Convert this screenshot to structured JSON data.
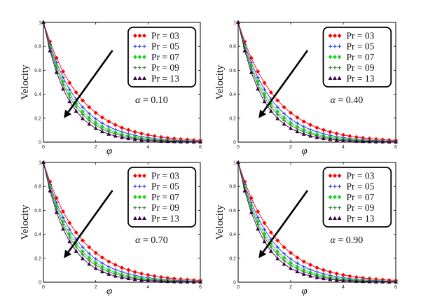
{
  "chart_data": [
    {
      "type": "line",
      "title": "",
      "xlabel": "φ",
      "ylabel": "Velocity",
      "xlim": [
        0,
        6
      ],
      "ylim": [
        0,
        1
      ],
      "xticks": [
        "0",
        "2",
        "4",
        "6"
      ],
      "yticks": [
        "0",
        "0.2",
        "0.4",
        "0.6",
        "0.8",
        "1"
      ],
      "annotation": {
        "symbol": "α",
        "text": " = 0.10"
      },
      "x": [
        0,
        0.25,
        0.5,
        0.75,
        1,
        1.25,
        1.5,
        1.75,
        2,
        2.25,
        2.5,
        2.75,
        3,
        3.25,
        3.5,
        3.75,
        4,
        4.25,
        4.5,
        4.75,
        5,
        5.25,
        5.5,
        5.75,
        6
      ],
      "series": [
        {
          "name": "Pr = 03",
          "color": "#ff0000",
          "marker": "diamond",
          "values": [
            1.0,
            0.839,
            0.703,
            0.59,
            0.495,
            0.415,
            0.348,
            0.292,
            0.245,
            0.206,
            0.172,
            0.145,
            0.121,
            0.102,
            0.085,
            0.072,
            0.06,
            0.05,
            0.042,
            0.035,
            0.03,
            0.025,
            0.021,
            0.017,
            0.015
          ]
        },
        {
          "name": "Pr = 05",
          "color": "#2a34f5",
          "marker": "plus",
          "values": [
            1.0,
            0.815,
            0.664,
            0.541,
            0.441,
            0.359,
            0.292,
            0.238,
            0.194,
            0.158,
            0.129,
            0.105,
            0.086,
            0.07,
            0.057,
            0.046,
            0.038,
            0.031,
            0.025,
            0.02,
            0.017,
            0.014,
            0.011,
            0.009,
            0.007
          ]
        },
        {
          "name": "Pr = 07",
          "color": "#1ed31e",
          "marker": "diamond",
          "values": [
            1.0,
            0.797,
            0.635,
            0.506,
            0.403,
            0.321,
            0.256,
            0.204,
            0.162,
            0.129,
            0.103,
            0.082,
            0.065,
            0.052,
            0.042,
            0.033,
            0.026,
            0.021,
            0.017,
            0.013,
            0.011,
            0.009,
            0.007,
            0.005,
            0.004
          ]
        },
        {
          "name": "Pr = 09",
          "color": "#2e7d32",
          "marker": "plus",
          "values": [
            1.0,
            0.783,
            0.613,
            0.48,
            0.375,
            0.294,
            0.23,
            0.18,
            0.141,
            0.11,
            0.086,
            0.068,
            0.053,
            0.041,
            0.032,
            0.025,
            0.02,
            0.016,
            0.012,
            0.01,
            0.007,
            0.006,
            0.005,
            0.004,
            0.003
          ]
        },
        {
          "name": "Pr = 13",
          "color": "#3a0045",
          "marker": "triangle",
          "values": [
            1.0,
            0.763,
            0.582,
            0.444,
            0.339,
            0.259,
            0.197,
            0.151,
            0.115,
            0.088,
            0.067,
            0.051,
            0.039,
            0.03,
            0.023,
            0.017,
            0.013,
            0.01,
            0.008,
            0.006,
            0.005,
            0.003,
            0.003,
            0.002,
            0.002
          ]
        }
      ]
    },
    {
      "type": "line",
      "title": "",
      "xlabel": "φ",
      "ylabel": "Velocity",
      "xlim": [
        0,
        6
      ],
      "ylim": [
        0,
        1
      ],
      "xticks": [
        "0",
        "2",
        "4",
        "6"
      ],
      "yticks": [
        "0",
        "0.2",
        "0.4",
        "0.6",
        "0.8",
        "1"
      ],
      "annotation": {
        "symbol": "α",
        "text": " = 0.40"
      },
      "x": [
        0,
        0.25,
        0.5,
        0.75,
        1,
        1.25,
        1.5,
        1.75,
        2,
        2.25,
        2.5,
        2.75,
        3,
        3.25,
        3.5,
        3.75,
        4,
        4.25,
        4.5,
        4.75,
        5,
        5.25,
        5.5,
        5.75,
        6
      ],
      "series": [
        {
          "name": "Pr = 03",
          "color": "#ff0000",
          "marker": "diamond",
          "values": [
            1.0,
            0.839,
            0.703,
            0.59,
            0.495,
            0.415,
            0.348,
            0.292,
            0.245,
            0.206,
            0.172,
            0.145,
            0.121,
            0.102,
            0.085,
            0.072,
            0.06,
            0.05,
            0.042,
            0.035,
            0.03,
            0.025,
            0.021,
            0.017,
            0.015
          ]
        },
        {
          "name": "Pr = 05",
          "color": "#2a34f5",
          "marker": "plus",
          "values": [
            1.0,
            0.815,
            0.664,
            0.541,
            0.441,
            0.359,
            0.292,
            0.238,
            0.194,
            0.158,
            0.129,
            0.105,
            0.086,
            0.07,
            0.057,
            0.046,
            0.038,
            0.031,
            0.025,
            0.02,
            0.017,
            0.014,
            0.011,
            0.009,
            0.007
          ]
        },
        {
          "name": "Pr = 07",
          "color": "#1ed31e",
          "marker": "diamond",
          "values": [
            1.0,
            0.797,
            0.635,
            0.506,
            0.403,
            0.321,
            0.256,
            0.204,
            0.162,
            0.129,
            0.103,
            0.082,
            0.065,
            0.052,
            0.042,
            0.033,
            0.026,
            0.021,
            0.017,
            0.013,
            0.011,
            0.009,
            0.007,
            0.005,
            0.004
          ]
        },
        {
          "name": "Pr = 09",
          "color": "#2e7d32",
          "marker": "plus",
          "values": [
            1.0,
            0.783,
            0.613,
            0.48,
            0.375,
            0.294,
            0.23,
            0.18,
            0.141,
            0.11,
            0.086,
            0.068,
            0.053,
            0.041,
            0.032,
            0.025,
            0.02,
            0.016,
            0.012,
            0.01,
            0.007,
            0.006,
            0.005,
            0.004,
            0.003
          ]
        },
        {
          "name": "Pr = 13",
          "color": "#3a0045",
          "marker": "triangle",
          "values": [
            1.0,
            0.763,
            0.582,
            0.444,
            0.339,
            0.259,
            0.197,
            0.151,
            0.115,
            0.088,
            0.067,
            0.051,
            0.039,
            0.03,
            0.023,
            0.017,
            0.013,
            0.01,
            0.008,
            0.006,
            0.005,
            0.003,
            0.003,
            0.002,
            0.002
          ]
        }
      ]
    },
    {
      "type": "line",
      "title": "",
      "xlabel": "φ",
      "ylabel": "Velocity",
      "xlim": [
        0,
        6
      ],
      "ylim": [
        0,
        1
      ],
      "xticks": [
        "0",
        "2",
        "4",
        "6"
      ],
      "yticks": [
        "0",
        "0.2",
        "0.4",
        "0.6",
        "0.8",
        "1"
      ],
      "annotation": {
        "symbol": "α",
        "text": " = 0.70"
      },
      "x": [
        0,
        0.25,
        0.5,
        0.75,
        1,
        1.25,
        1.5,
        1.75,
        2,
        2.25,
        2.5,
        2.75,
        3,
        3.25,
        3.5,
        3.75,
        4,
        4.25,
        4.5,
        4.75,
        5,
        5.25,
        5.5,
        5.75,
        6
      ],
      "series": [
        {
          "name": "Pr = 03",
          "color": "#ff0000",
          "marker": "diamond",
          "values": [
            1.0,
            0.839,
            0.703,
            0.59,
            0.495,
            0.415,
            0.348,
            0.292,
            0.245,
            0.206,
            0.172,
            0.145,
            0.121,
            0.102,
            0.085,
            0.072,
            0.06,
            0.05,
            0.042,
            0.035,
            0.03,
            0.025,
            0.021,
            0.017,
            0.015
          ]
        },
        {
          "name": "Pr = 05",
          "color": "#2a34f5",
          "marker": "plus",
          "values": [
            1.0,
            0.815,
            0.664,
            0.541,
            0.441,
            0.359,
            0.292,
            0.238,
            0.194,
            0.158,
            0.129,
            0.105,
            0.086,
            0.07,
            0.057,
            0.046,
            0.038,
            0.031,
            0.025,
            0.02,
            0.017,
            0.014,
            0.011,
            0.009,
            0.007
          ]
        },
        {
          "name": "Pr = 07",
          "color": "#1ed31e",
          "marker": "diamond",
          "values": [
            1.0,
            0.797,
            0.635,
            0.506,
            0.403,
            0.321,
            0.256,
            0.204,
            0.162,
            0.129,
            0.103,
            0.082,
            0.065,
            0.052,
            0.042,
            0.033,
            0.026,
            0.021,
            0.017,
            0.013,
            0.011,
            0.009,
            0.007,
            0.005,
            0.004
          ]
        },
        {
          "name": "Pr = 09",
          "color": "#2e7d32",
          "marker": "plus",
          "values": [
            1.0,
            0.783,
            0.613,
            0.48,
            0.375,
            0.294,
            0.23,
            0.18,
            0.141,
            0.11,
            0.086,
            0.068,
            0.053,
            0.041,
            0.032,
            0.025,
            0.02,
            0.016,
            0.012,
            0.01,
            0.007,
            0.006,
            0.005,
            0.004,
            0.003
          ]
        },
        {
          "name": "Pr = 13",
          "color": "#3a0045",
          "marker": "triangle",
          "values": [
            1.0,
            0.763,
            0.582,
            0.444,
            0.339,
            0.259,
            0.197,
            0.151,
            0.115,
            0.088,
            0.067,
            0.051,
            0.039,
            0.03,
            0.023,
            0.017,
            0.013,
            0.01,
            0.008,
            0.006,
            0.005,
            0.003,
            0.003,
            0.002,
            0.002
          ]
        }
      ]
    },
    {
      "type": "line",
      "title": "",
      "xlabel": "φ",
      "ylabel": "Velocity",
      "xlim": [
        0,
        6
      ],
      "ylim": [
        0,
        1
      ],
      "xticks": [
        "0",
        "2",
        "4",
        "6"
      ],
      "yticks": [
        "0",
        "0.2",
        "0.4",
        "0.6",
        "0.8",
        "1"
      ],
      "annotation": {
        "symbol": "α",
        "text": " = 0.90"
      },
      "x": [
        0,
        0.25,
        0.5,
        0.75,
        1,
        1.25,
        1.5,
        1.75,
        2,
        2.25,
        2.5,
        2.75,
        3,
        3.25,
        3.5,
        3.75,
        4,
        4.25,
        4.5,
        4.75,
        5,
        5.25,
        5.5,
        5.75,
        6
      ],
      "series": [
        {
          "name": "Pr = 03",
          "color": "#ff0000",
          "marker": "diamond",
          "values": [
            1.0,
            0.839,
            0.703,
            0.59,
            0.495,
            0.415,
            0.348,
            0.292,
            0.245,
            0.206,
            0.172,
            0.145,
            0.121,
            0.102,
            0.085,
            0.072,
            0.06,
            0.05,
            0.042,
            0.035,
            0.03,
            0.025,
            0.021,
            0.017,
            0.015
          ]
        },
        {
          "name": "Pr = 05",
          "color": "#2a34f5",
          "marker": "plus",
          "values": [
            1.0,
            0.815,
            0.664,
            0.541,
            0.441,
            0.359,
            0.292,
            0.238,
            0.194,
            0.158,
            0.129,
            0.105,
            0.086,
            0.07,
            0.057,
            0.046,
            0.038,
            0.031,
            0.025,
            0.02,
            0.017,
            0.014,
            0.011,
            0.009,
            0.007
          ]
        },
        {
          "name": "Pr = 07",
          "color": "#1ed31e",
          "marker": "diamond",
          "values": [
            1.0,
            0.797,
            0.635,
            0.506,
            0.403,
            0.321,
            0.256,
            0.204,
            0.162,
            0.129,
            0.103,
            0.082,
            0.065,
            0.052,
            0.042,
            0.033,
            0.026,
            0.021,
            0.017,
            0.013,
            0.011,
            0.009,
            0.007,
            0.005,
            0.004
          ]
        },
        {
          "name": "Pr = 09",
          "color": "#2e7d32",
          "marker": "plus",
          "values": [
            1.0,
            0.783,
            0.613,
            0.48,
            0.375,
            0.294,
            0.23,
            0.18,
            0.141,
            0.11,
            0.086,
            0.068,
            0.053,
            0.041,
            0.032,
            0.025,
            0.02,
            0.016,
            0.012,
            0.01,
            0.007,
            0.006,
            0.005,
            0.004,
            0.003
          ]
        },
        {
          "name": "Pr = 13",
          "color": "#3a0045",
          "marker": "triangle",
          "values": [
            1.0,
            0.763,
            0.582,
            0.444,
            0.339,
            0.259,
            0.197,
            0.151,
            0.115,
            0.088,
            0.067,
            0.051,
            0.039,
            0.03,
            0.023,
            0.017,
            0.013,
            0.01,
            0.008,
            0.006,
            0.005,
            0.003,
            0.003,
            0.002,
            0.002
          ]
        }
      ]
    }
  ]
}
